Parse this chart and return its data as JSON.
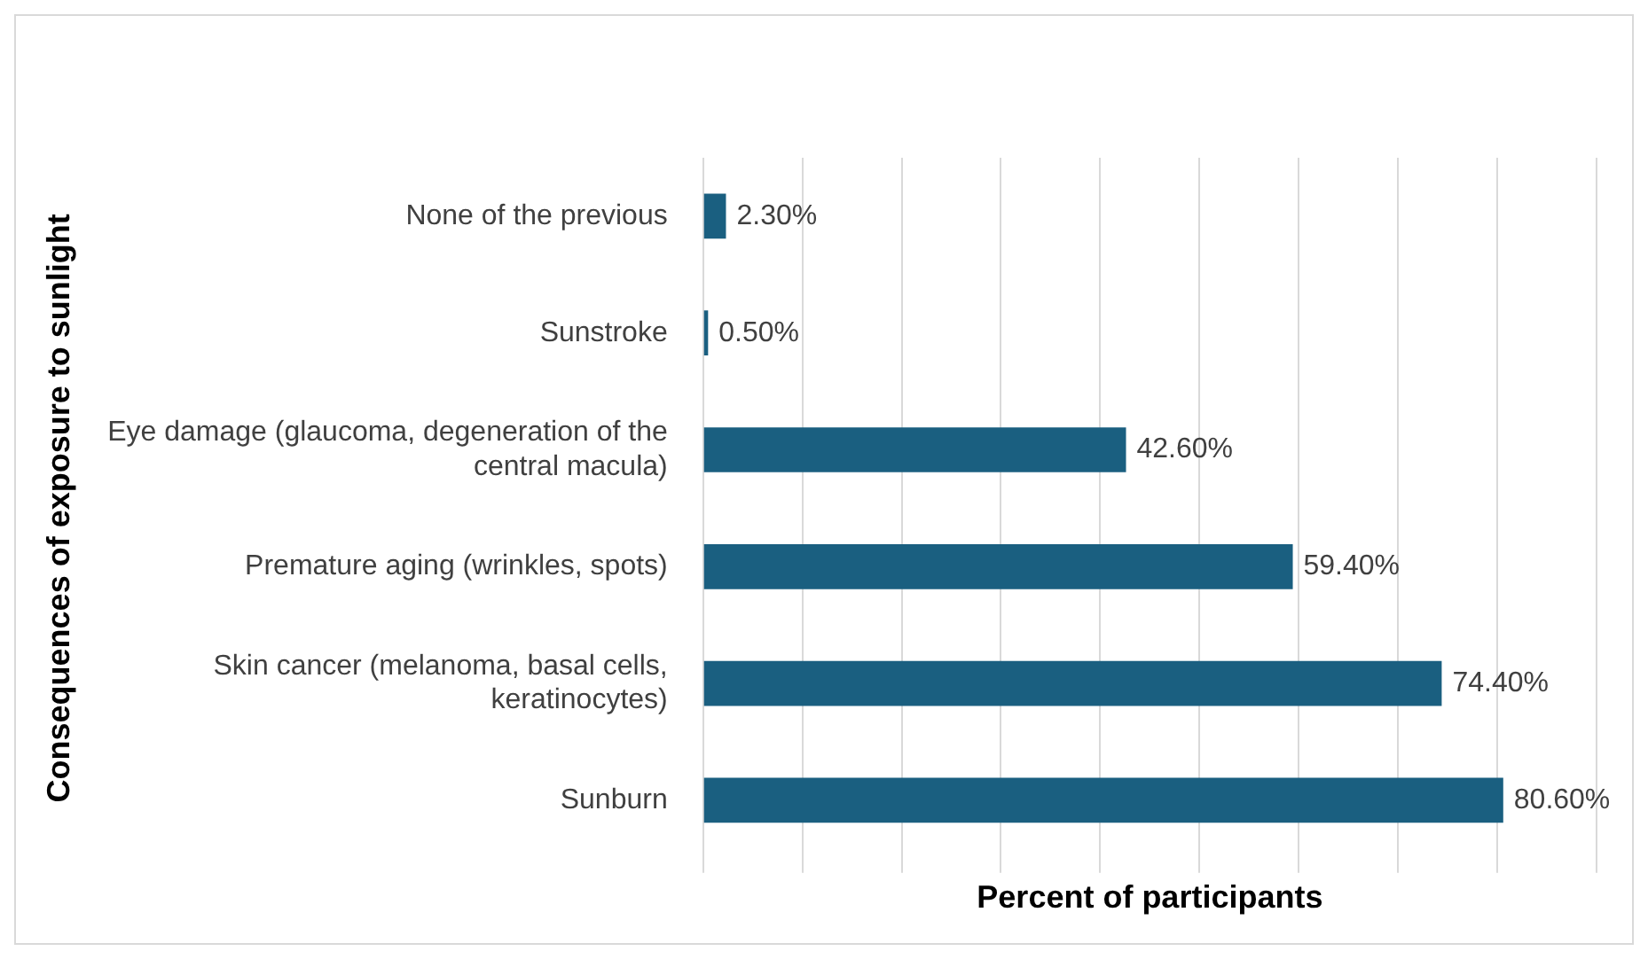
{
  "chart_data": {
    "type": "bar",
    "orientation": "horizontal",
    "xlabel": "Percent of participants",
    "ylabel": "Consequences of exposure to sunlight",
    "categories": [
      "None of the previous",
      "Sunstroke",
      "Eye damage (glaucoma, degeneration of the central macula)",
      "Premature aging (wrinkles, spots)",
      "Skin cancer (melanoma, basal cells, keratinocytes)",
      "Sunburn"
    ],
    "values": [
      2.3,
      0.5,
      42.6,
      59.4,
      74.4,
      80.6
    ],
    "value_labels": [
      "2.30%",
      "0.50%",
      "42.60%",
      "59.40%",
      "74.40%",
      "80.60%"
    ],
    "color": "#1a5f80",
    "xlim": [
      0,
      90
    ],
    "xticks": [
      {
        "value": 0,
        "label": null
      },
      {
        "value": 10,
        "label": null
      },
      {
        "value": 20,
        "label": null
      },
      {
        "value": 30,
        "label": null
      },
      {
        "value": 40,
        "label": null
      },
      {
        "value": 50,
        "label": null
      },
      {
        "value": 60,
        "label": null
      },
      {
        "value": 70,
        "label": null
      },
      {
        "value": 80,
        "label": null
      },
      {
        "value": 90,
        "label": null
      }
    ],
    "grid": "x",
    "tick_labels": "y",
    "legend": false
  }
}
